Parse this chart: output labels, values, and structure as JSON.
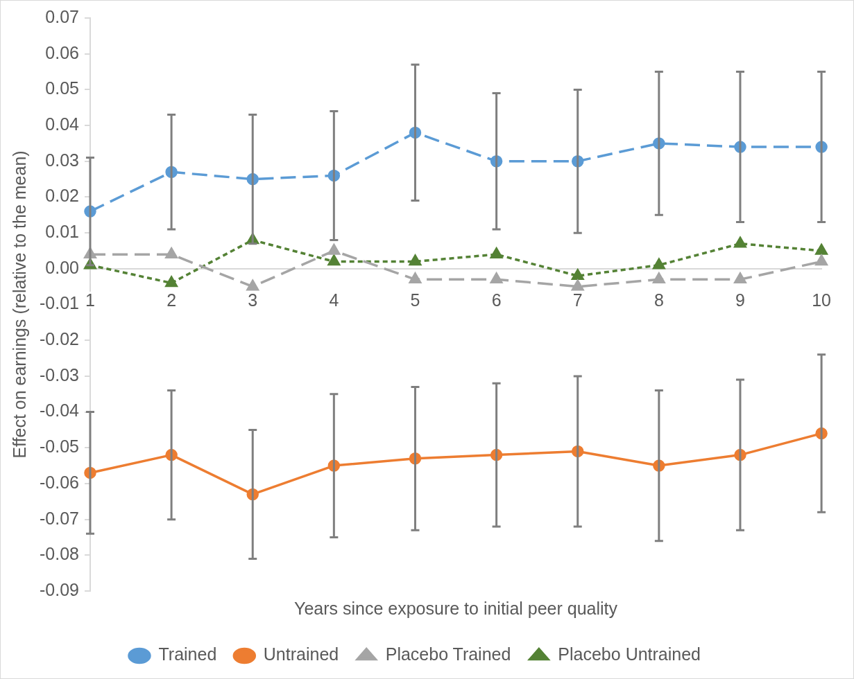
{
  "chart_data": {
    "type": "line",
    "xlabel": "Years since exposure to initial peer quality",
    "ylabel": "Effect on earnings (relative to the mean)",
    "categories": [
      "1",
      "2",
      "3",
      "4",
      "5",
      "6",
      "7",
      "8",
      "9",
      "10"
    ],
    "ylim": [
      -0.09,
      0.07
    ],
    "yticks": [
      0.07,
      0.06,
      0.05,
      0.04,
      0.03,
      0.02,
      0.01,
      {
        "value": 0,
        "label": "0.00"
      },
      -0.01,
      -0.02,
      -0.03,
      -0.04,
      -0.05,
      -0.06,
      -0.07,
      -0.08,
      -0.09
    ],
    "grid": false,
    "legend": "bottom",
    "series": [
      {
        "name": "Trained",
        "color": "#5b9bd5",
        "marker": "circle",
        "line_style": "dashed",
        "values": [
          0.016,
          0.027,
          0.025,
          0.026,
          0.038,
          0.03,
          0.03,
          0.035,
          0.034,
          0.034
        ],
        "errors": [
          0.015,
          0.016,
          0.018,
          0.018,
          0.019,
          0.019,
          0.02,
          0.02,
          0.021,
          0.021
        ]
      },
      {
        "name": "Untrained",
        "color": "#ed7d31",
        "marker": "circle",
        "line_style": "solid",
        "values": [
          -0.057,
          -0.052,
          -0.063,
          -0.055,
          -0.053,
          -0.052,
          -0.051,
          -0.055,
          -0.052,
          -0.046
        ],
        "errors": [
          0.017,
          0.018,
          0.018,
          0.02,
          0.02,
          0.02,
          0.021,
          0.021,
          0.021,
          0.022
        ]
      },
      {
        "name": "Placebo Trained",
        "color": "#a5a5a5",
        "marker": "triangle",
        "line_style": "dashed",
        "values": [
          0.004,
          0.004,
          -0.005,
          0.005,
          -0.003,
          -0.003,
          -0.005,
          -0.003,
          -0.003,
          0.002
        ]
      },
      {
        "name": "Placebo Untrained",
        "color": "#548235",
        "marker": "triangle",
        "line_style": "dotted",
        "values": [
          0.001,
          -0.004,
          0.008,
          0.002,
          0.002,
          0.004,
          -0.002,
          0.001,
          0.007,
          0.005
        ]
      }
    ]
  }
}
